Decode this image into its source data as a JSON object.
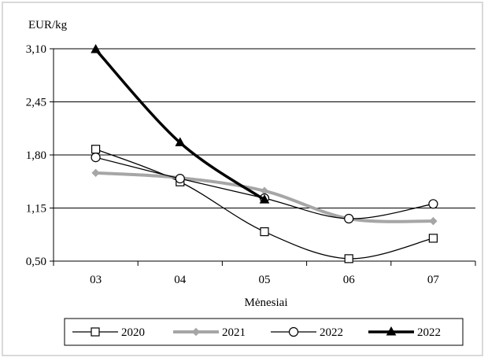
{
  "chart_data": {
    "type": "line",
    "ylabel": "EUR/kg",
    "xlabel": "Mėnesiai",
    "categories": [
      "03",
      "04",
      "05",
      "06",
      "07"
    ],
    "ylim": [
      0.5,
      3.1
    ],
    "yticks": [
      0.5,
      1.15,
      1.8,
      2.45,
      3.1
    ],
    "ytick_labels": [
      "0,50",
      "1,15",
      "1,80",
      "2,45",
      "3,10"
    ],
    "grid": true,
    "legend_position": "bottom",
    "series": [
      {
        "name": "2020",
        "values": [
          1.87,
          1.47,
          0.86,
          0.53,
          0.78
        ],
        "color": "#000000",
        "marker": "square-open",
        "line_width": 1.3
      },
      {
        "name": "2021",
        "values": [
          1.58,
          1.52,
          1.36,
          1.02,
          0.99
        ],
        "color": "#a6a6a6",
        "marker": "diamond",
        "line_width": 4
      },
      {
        "name": "2022",
        "values": [
          1.77,
          1.51,
          1.27,
          1.02,
          1.2
        ],
        "color": "#000000",
        "marker": "circle-open",
        "line_width": 1.3
      },
      {
        "name": "2022",
        "values": [
          3.09,
          1.95,
          1.25,
          null,
          null
        ],
        "color": "#000000",
        "marker": "triangle",
        "line_width": 3.5
      }
    ]
  }
}
